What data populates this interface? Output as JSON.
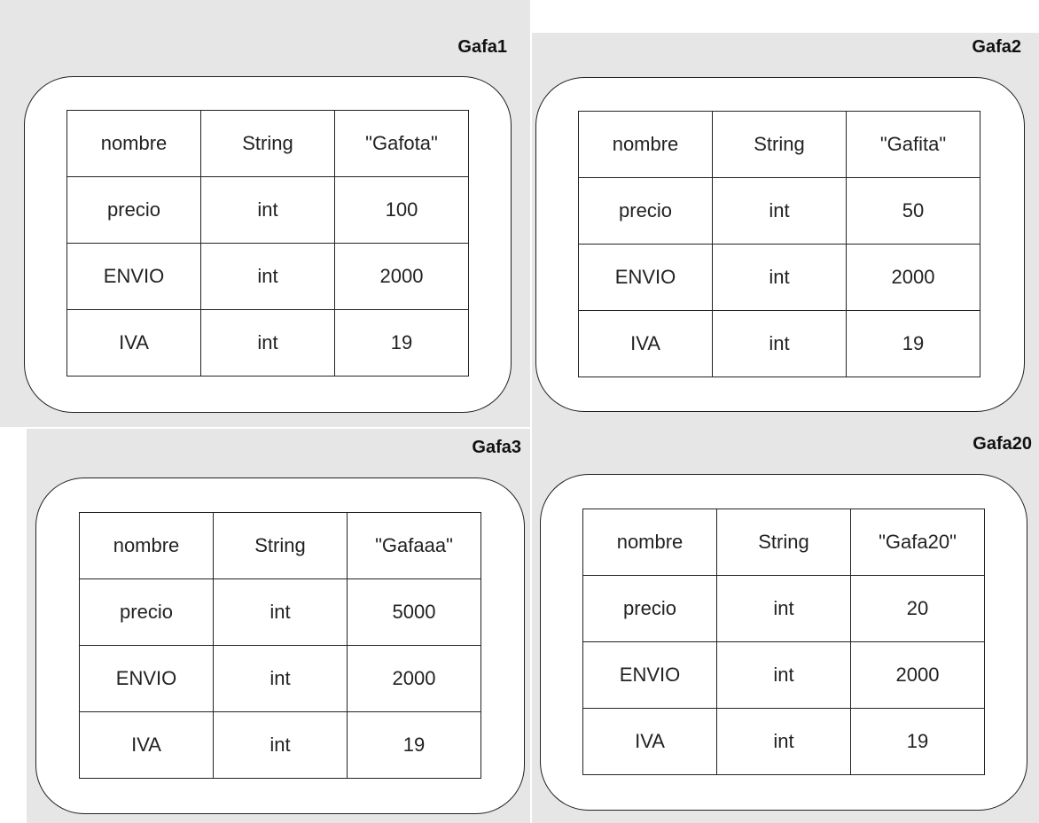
{
  "objects": [
    {
      "title": "Gafa1",
      "rows": [
        {
          "field": "nombre",
          "type": "String",
          "value": "\"Gafota\""
        },
        {
          "field": "precio",
          "type": "int",
          "value": "100"
        },
        {
          "field": "ENVIO",
          "type": "int",
          "value": "2000"
        },
        {
          "field": "IVA",
          "type": "int",
          "value": "19"
        }
      ]
    },
    {
      "title": "Gafa2",
      "rows": [
        {
          "field": "nombre",
          "type": "String",
          "value": "\"Gafita\""
        },
        {
          "field": "precio",
          "type": "int",
          "value": "50"
        },
        {
          "field": "ENVIO",
          "type": "int",
          "value": "2000"
        },
        {
          "field": "IVA",
          "type": "int",
          "value": "19"
        }
      ]
    },
    {
      "title": "Gafa3",
      "rows": [
        {
          "field": "nombre",
          "type": "String",
          "value": "\"Gafaaa\""
        },
        {
          "field": "precio",
          "type": "int",
          "value": "5000"
        },
        {
          "field": "ENVIO",
          "type": "int",
          "value": "2000"
        },
        {
          "field": "IVA",
          "type": "int",
          "value": "19"
        }
      ]
    },
    {
      "title": "Gafa20",
      "rows": [
        {
          "field": "nombre",
          "type": "String",
          "value": "\"Gafa20\""
        },
        {
          "field": "precio",
          "type": "int",
          "value": "20"
        },
        {
          "field": "ENVIO",
          "type": "int",
          "value": "2000"
        },
        {
          "field": "IVA",
          "type": "int",
          "value": "19"
        }
      ]
    }
  ]
}
